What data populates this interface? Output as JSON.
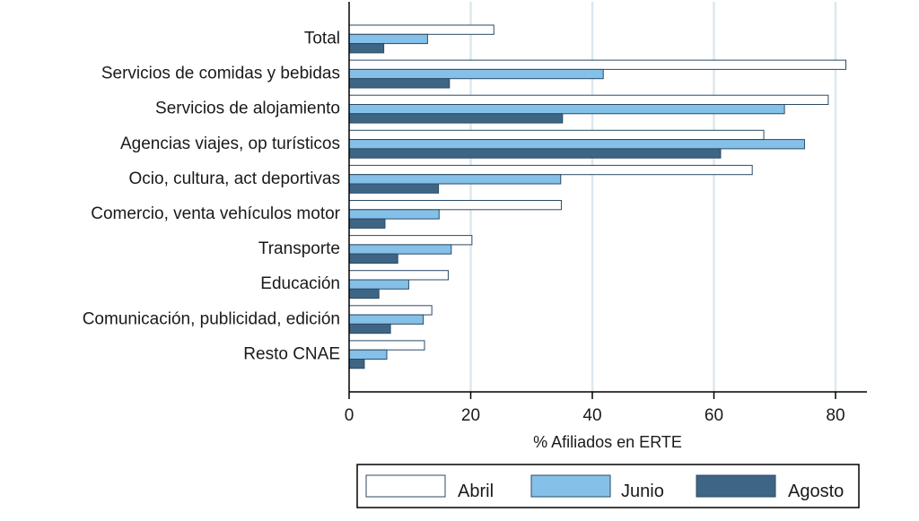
{
  "chart_data": {
    "type": "bar",
    "orientation": "horizontal",
    "title": "",
    "xlabel": "% Afiliados en ERTE",
    "ylabel": "",
    "xlim": [
      0,
      85
    ],
    "xticks": [
      0,
      20,
      40,
      60,
      80
    ],
    "grid": true,
    "legend_position": "bottom",
    "categories": [
      "Total",
      "Servicios de comidas y bebidas",
      "Servicios de alojamiento",
      "Agencias viajes, op turísticos",
      "Ocio, cultura, act deportivas",
      "Comercio, venta vehículos motor",
      "Transporte",
      "Educación",
      "Comunicación, publicidad, edición",
      "Resto CNAE"
    ],
    "series": [
      {
        "name": "Abril",
        "color": "#ffffff",
        "values": [
          23.8,
          81.7,
          78.8,
          68.2,
          66.3,
          34.9,
          20.2,
          16.3,
          13.6,
          12.4
        ]
      },
      {
        "name": "Junio",
        "color": "#85c0e9",
        "values": [
          12.9,
          41.8,
          71.6,
          74.9,
          34.8,
          14.8,
          16.8,
          9.8,
          12.2,
          6.2
        ]
      },
      {
        "name": "Agosto",
        "color": "#3f6585",
        "values": [
          5.7,
          16.5,
          35.1,
          61.1,
          14.7,
          5.9,
          8.0,
          4.9,
          6.8,
          2.5
        ]
      }
    ]
  }
}
